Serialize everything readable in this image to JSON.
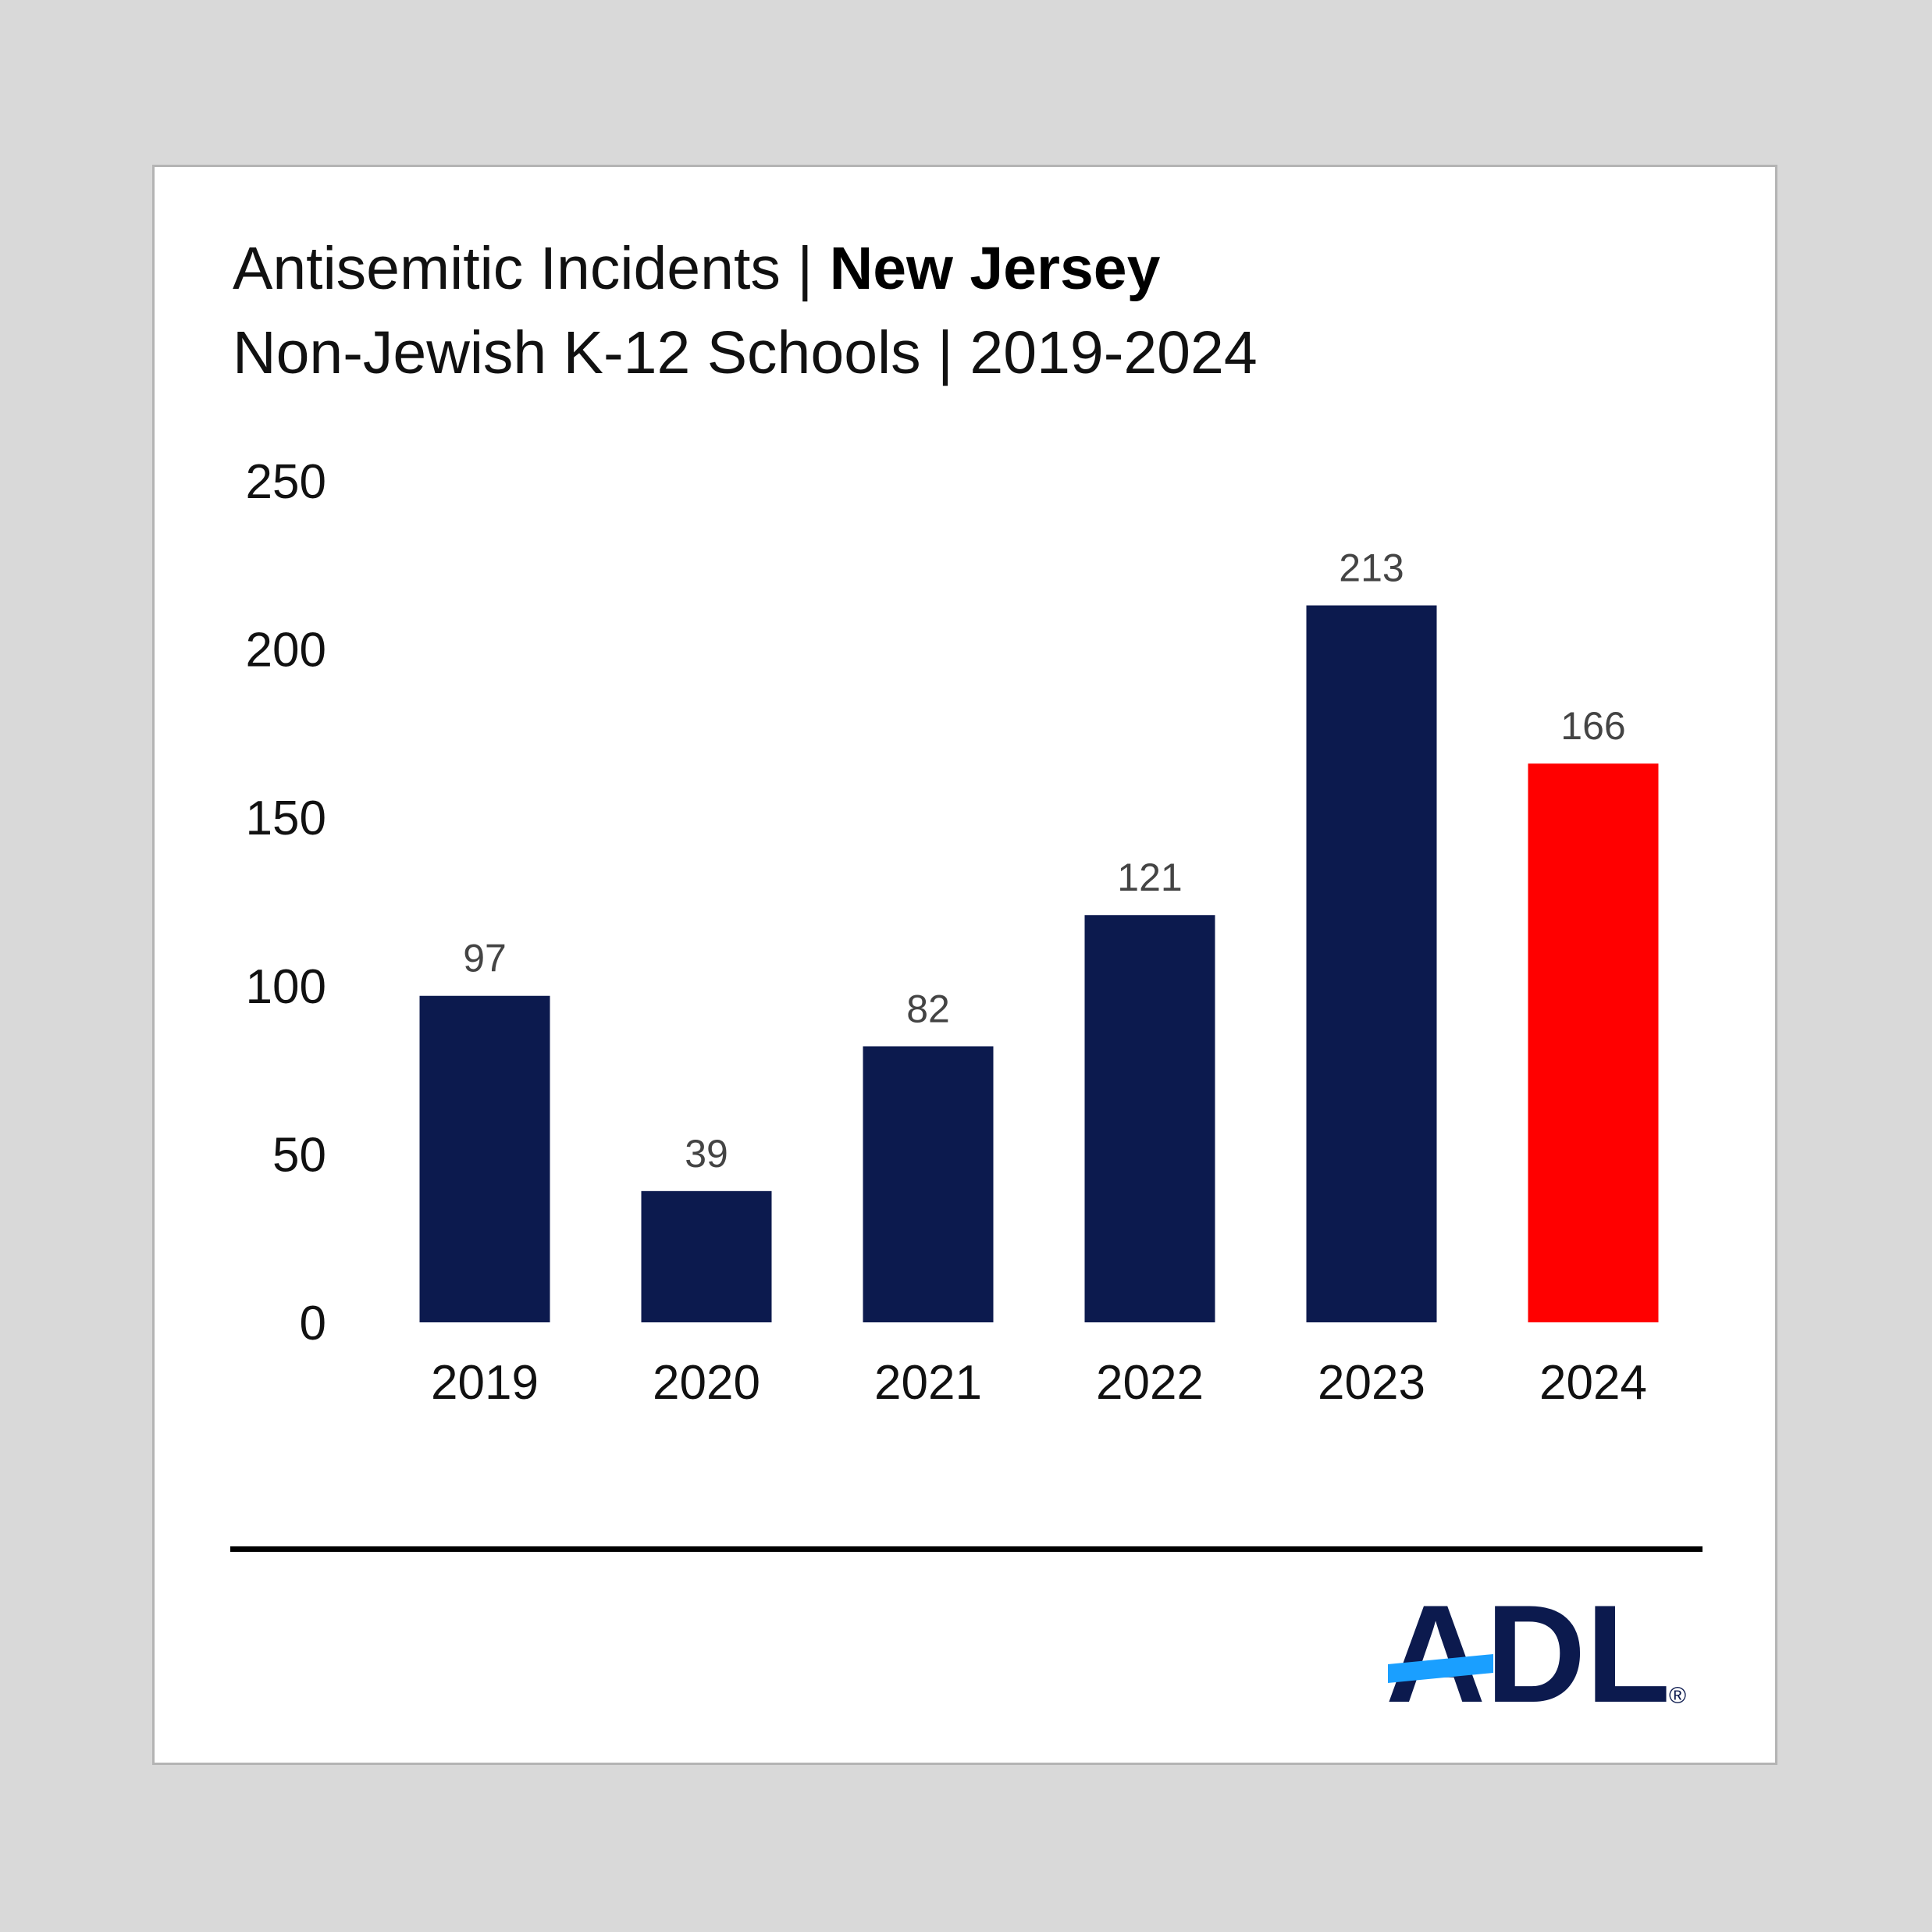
{
  "header": {
    "title_prefix": "Antisemitic Incidents | ",
    "title_bold": "New Jersey",
    "subtitle": "Non-Jewish K-12 Schools | 2019-2024"
  },
  "chart_data": {
    "type": "bar",
    "title": "Antisemitic Incidents | New Jersey",
    "subtitle": "Non-Jewish K-12 Schools | 2019-2024",
    "categories": [
      "2019",
      "2020",
      "2021",
      "2022",
      "2023",
      "2024"
    ],
    "values": [
      97,
      39,
      82,
      121,
      213,
      166
    ],
    "bar_colors": [
      "#0c1a4e",
      "#0c1a4e",
      "#0c1a4e",
      "#0c1a4e",
      "#0c1a4e",
      "#ff0000"
    ],
    "yticks": [
      0,
      50,
      100,
      150,
      200,
      250
    ],
    "ylim": [
      0,
      250
    ],
    "xlabel": "",
    "ylabel": "",
    "grid": false,
    "legend": "none",
    "data_labels": true
  },
  "logo": {
    "text": "ADL",
    "mark": "®",
    "color": "#0c1a4e",
    "accent": "#1a9fff"
  }
}
